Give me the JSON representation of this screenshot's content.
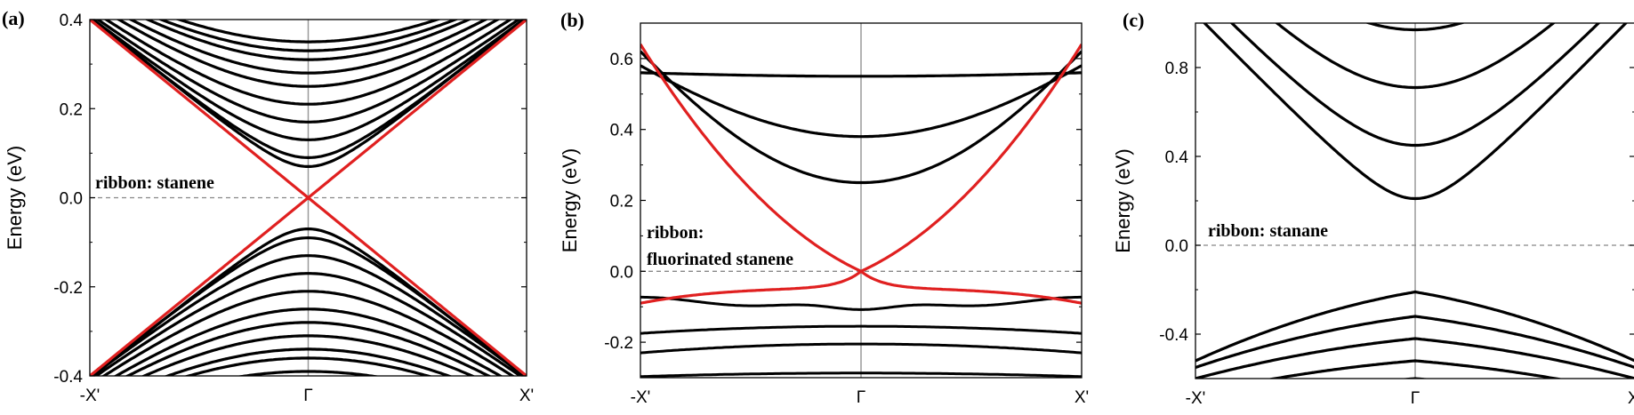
{
  "chart_data": [
    {
      "panel": "(a)",
      "type": "line",
      "ylabel": "Energy (eV)",
      "xticks": [
        "-X'",
        "Γ",
        "X'"
      ],
      "ylim": [
        -0.4,
        0.4
      ],
      "yticks": [
        0.4,
        0.2,
        0.0,
        -0.2,
        -0.4
      ],
      "ytick_labels": [
        "0.4",
        "0.2",
        "0.0",
        "-0.2",
        "-0.4"
      ],
      "annotation": [
        "ribbon: stanene"
      ],
      "fermi_level": 0.0,
      "edge_states": {
        "color": "#e02020",
        "shape": "dirac_cone",
        "crossing_energy": 0.0,
        "energy_at_boundary": 0.4
      },
      "bulk_conduction_minima": [
        0.07,
        0.09,
        0.13,
        0.17,
        0.21,
        0.25,
        0.28,
        0.31,
        0.33,
        0.35
      ],
      "bulk_valence_maxima": [
        -0.07,
        -0.09,
        -0.13,
        -0.17,
        -0.21,
        -0.25,
        -0.28,
        -0.31,
        -0.34,
        -0.36,
        -0.39
      ]
    },
    {
      "panel": "(b)",
      "type": "line",
      "ylabel": "Energy (eV)",
      "xticks": [
        "-X'",
        "Γ",
        "X'"
      ],
      "ylim": [
        -0.3,
        0.7
      ],
      "yticks": [
        0.6,
        0.4,
        0.2,
        0.0,
        -0.2
      ],
      "ytick_labels": [
        "0.6",
        "0.4",
        "0.2",
        "0.0",
        "-0.2"
      ],
      "annotation": [
        "ribbon:",
        "fluorinated stanene"
      ],
      "fermi_level": 0.0,
      "edge_states": {
        "color": "#e02020",
        "crossing_energy": 0.0,
        "upper_branch_at_boundary": 0.64,
        "lower_branch_at_boundary": -0.09,
        "lower_branch_flat_level": -0.05
      },
      "bulk_conduction_minima": [
        0.25,
        0.38,
        0.55
      ],
      "bulk_valence_levels": [
        -0.12,
        -0.16,
        -0.21,
        -0.29
      ]
    },
    {
      "panel": "(c)",
      "type": "line",
      "ylabel": "Energy (eV)",
      "xticks": [
        "-X'",
        "Γ",
        "X'"
      ],
      "ylim": [
        -0.6,
        1.0
      ],
      "yticks": [
        0.8,
        0.4,
        0.0,
        -0.4
      ],
      "ytick_labels": [
        "0.8",
        "0.4",
        "0.0",
        "-0.4"
      ],
      "annotation": [
        "ribbon: stanane"
      ],
      "fermi_level": 0.0,
      "bulk_conduction_minima": [
        0.21,
        0.45,
        0.71,
        0.97
      ],
      "bulk_valence_maxima": [
        -0.21,
        -0.32,
        -0.42,
        -0.52,
        -0.6
      ]
    }
  ]
}
